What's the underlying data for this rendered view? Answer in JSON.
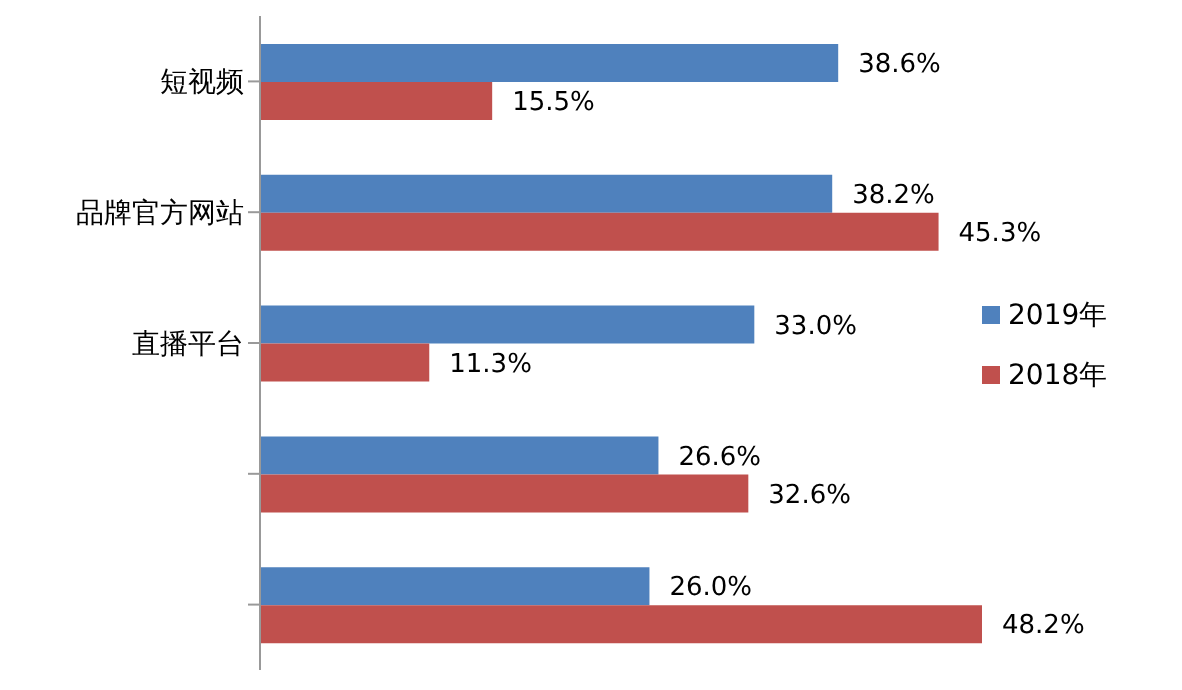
{
  "chart_data": {
    "type": "bar",
    "orientation": "horizontal",
    "categories": [
      "短视频",
      "品牌官方网站",
      "直播平台",
      null,
      null
    ],
    "series": [
      {
        "name": "2019年",
        "color": "#4f81bd",
        "values": [
          38.6,
          38.2,
          33.0,
          26.6,
          26.0
        ],
        "value_labels": [
          "38.6%",
          "38.2%",
          "33.0%",
          "26.6%",
          "26.0%"
        ]
      },
      {
        "name": "2018年",
        "color": "#c0504d",
        "values": [
          15.5,
          45.3,
          11.3,
          32.6,
          48.2
        ],
        "value_labels": [
          "15.5%",
          "45.3%",
          "11.3%",
          "32.6%",
          "48.2%"
        ]
      }
    ],
    "legend": "right"
  }
}
